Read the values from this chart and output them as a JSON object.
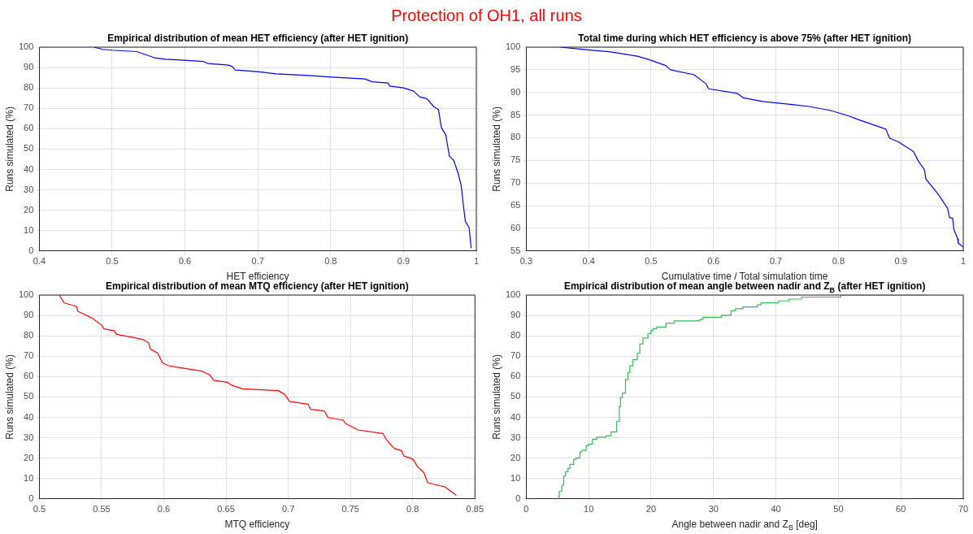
{
  "chart_data": [
    {
      "type": "line",
      "title": "Empirical distribution of mean HET efficiency (after HET ignition)",
      "xlabel": "HET efficiency",
      "ylabel": "Runs simulated (%)",
      "annotations": [
        "Protection of OH1, all runs"
      ],
      "xlim": [
        0.4,
        1
      ],
      "xticks": [
        0.4,
        0.5,
        0.6,
        0.7,
        0.8,
        0.9,
        1
      ],
      "ylim": [
        0,
        100
      ],
      "yticks": [
        0,
        10,
        20,
        30,
        40,
        50,
        60,
        70,
        80,
        90,
        100
      ],
      "grid": true,
      "legend": false,
      "marker": "none",
      "series": [
        {
          "color": "#0000ff",
          "x": [
            0.475,
            0.487,
            0.5,
            0.534,
            0.542,
            0.558,
            0.573,
            0.599,
            0.625,
            0.631,
            0.66,
            0.665,
            0.669,
            0.7,
            0.725,
            0.765,
            0.802,
            0.847,
            0.857,
            0.879,
            0.881,
            0.9,
            0.914,
            0.922,
            0.932,
            0.942,
            0.948,
            0.952,
            0.958,
            0.963,
            0.969,
            0.975,
            0.979,
            0.983,
            0.985,
            0.99,
            0.993
          ],
          "values": [
            100,
            98.9,
            98.5,
            97.8,
            96.8,
            94.8,
            94.1,
            93.6,
            93,
            92,
            91.2,
            90.5,
            88.8,
            88,
            86.9,
            86.2,
            85.3,
            84.4,
            83,
            82.4,
            80.9,
            80,
            78.4,
            75.6,
            74.7,
            70.7,
            69.4,
            60.5,
            57,
            46.5,
            44.4,
            38.1,
            32.5,
            20,
            14.4,
            11.6,
            1.4
          ]
        }
      ]
    },
    {
      "type": "line",
      "title": "Total time during which HET efficiency is above 75% (after HET ignition)",
      "xlabel": "Cumulative time / Total simulation time",
      "ylabel": "Runs simulated (%)",
      "xlim": [
        0.3,
        1
      ],
      "xticks": [
        0.3,
        0.4,
        0.5,
        0.6,
        0.7,
        0.8,
        0.9,
        1
      ],
      "ylim": [
        55,
        100
      ],
      "yticks": [
        55,
        60,
        65,
        70,
        75,
        80,
        85,
        90,
        95,
        100
      ],
      "grid": true,
      "legend": false,
      "marker": "none",
      "series": [
        {
          "color": "#0000ff",
          "x": [
            0.354,
            0.399,
            0.433,
            0.478,
            0.498,
            0.524,
            0.531,
            0.569,
            0.588,
            0.592,
            0.638,
            0.648,
            0.679,
            0.729,
            0.753,
            0.788,
            0.817,
            0.832,
            0.876,
            0.882,
            0.896,
            0.92,
            0.928,
            0.938,
            0.94,
            0.96,
            0.975,
            0.978,
            0.983,
            0.985,
            0.991,
            0.992,
            1
          ],
          "values": [
            100,
            99.4,
            99,
            98,
            97.2,
            95.9,
            95,
            93.9,
            91.9,
            90.8,
            89.8,
            88.8,
            88,
            87.3,
            86.9,
            86,
            84.8,
            84,
            81.9,
            79.9,
            79.1,
            77,
            74.9,
            72.9,
            70.9,
            67.5,
            64.4,
            62.4,
            62.2,
            59.8,
            57.7,
            56.7,
            55.9
          ]
        }
      ]
    },
    {
      "type": "line",
      "title": "Empirical distribution of mean MTQ efficiency (after HET ignition)",
      "xlabel": "MTQ efficiency",
      "ylabel": "Runs simulated (%)",
      "xlim": [
        0.5,
        0.85
      ],
      "xticks": [
        0.5,
        0.55,
        0.6,
        0.65,
        0.7,
        0.75,
        0.8,
        0.85
      ],
      "ylim": [
        0,
        100
      ],
      "yticks": [
        0,
        10,
        20,
        30,
        40,
        50,
        60,
        70,
        80,
        90,
        100
      ],
      "grid": true,
      "legend": false,
      "marker": "none",
      "series": [
        {
          "color": "#ff0000",
          "x": [
            0.516,
            0.52,
            0.53,
            0.531,
            0.542,
            0.55,
            0.552,
            0.56,
            0.562,
            0.577,
            0.584,
            0.588,
            0.589,
            0.595,
            0.599,
            0.604,
            0.614,
            0.63,
            0.637,
            0.64,
            0.651,
            0.654,
            0.663,
            0.692,
            0.697,
            0.701,
            0.716,
            0.718,
            0.729,
            0.732,
            0.744,
            0.746,
            0.756,
            0.776,
            0.779,
            0.785,
            0.791,
            0.793,
            0.8,
            0.804,
            0.809,
            0.812,
            0.818,
            0.826,
            0.835
          ],
          "values": [
            100,
            96.1,
            94.4,
            92,
            88.8,
            85.3,
            83.4,
            82.5,
            80.7,
            79,
            78,
            76.5,
            73.6,
            71.6,
            66.7,
            65.3,
            64.3,
            62.8,
            60.8,
            58.2,
            57.2,
            55.9,
            54,
            53.1,
            51.3,
            47.8,
            46.4,
            43.9,
            43.1,
            39.9,
            38.7,
            37,
            33.8,
            32.1,
            29,
            24.8,
            23.6,
            21,
            19.6,
            15.7,
            12.9,
            8,
            7,
            5.9,
            1.7
          ]
        }
      ]
    },
    {
      "type": "step",
      "title": "Empirical distribution of mean angle between nadir and Z$_{B}$ (after HET ignition)",
      "xlabel": "Angle between nadir and Z$_{B}$ [deg]",
      "ylabel": "Runs simulated (%)",
      "xlim": [
        0,
        70
      ],
      "xticks": [
        0,
        10,
        20,
        30,
        40,
        50,
        60,
        70
      ],
      "ylim": [
        0,
        100
      ],
      "yticks": [
        0,
        10,
        20,
        30,
        40,
        50,
        60,
        70,
        80,
        90,
        100
      ],
      "grid": true,
      "legend": false,
      "marker": "none",
      "series": [
        {
          "color": "#33bb55",
          "x": [
            5.2,
            5.3,
            5.7,
            6,
            6.3,
            6.7,
            7,
            7.6,
            8,
            8.6,
            8.9,
            9.6,
            10,
            10.6,
            11.3,
            12.8,
            13.6,
            14.5,
            14.9,
            15.1,
            15.4,
            15.9,
            16.3,
            16.6,
            17.1,
            17.8,
            18.2,
            18.7,
            19.5,
            20,
            20.3,
            20.9,
            22.4,
            23.7,
            27.8,
            28.3,
            31.3,
            32.8,
            33.5,
            34.7,
            37,
            37.6,
            40.4,
            42.1,
            44.1,
            50.4,
            64.3
          ],
          "values": [
            0,
            1.3,
            3.8,
            6.7,
            11.1,
            13.3,
            15,
            16.9,
            19.4,
            20.1,
            23,
            23.8,
            26.1,
            26.8,
            29.3,
            30.3,
            31,
            32.9,
            38,
            45.3,
            49.7,
            51.9,
            58.5,
            62.1,
            65.3,
            68.3,
            71.6,
            76,
            78.9,
            81.1,
            82.5,
            83.5,
            84.3,
            86.2,
            87.3,
            88,
            89.1,
            90.1,
            92.3,
            93.3,
            94.2,
            95.2,
            96.2,
            97.1,
            98,
            99,
            100
          ]
        }
      ]
    }
  ]
}
